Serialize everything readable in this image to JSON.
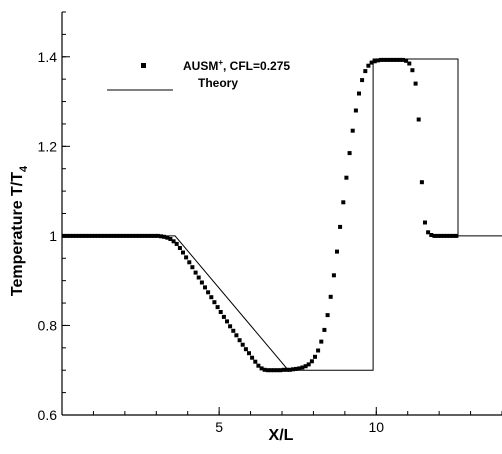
{
  "chart_data": {
    "type": "scatter",
    "xlabel": "X/L",
    "ylabel_main": "Temperature T/T",
    "ylabel_sub": "4",
    "xlim": [
      0,
      14
    ],
    "ylim": [
      0.6,
      1.5
    ],
    "x_ticks": [
      {
        "value": 5,
        "label": "5"
      },
      {
        "value": 10,
        "label": "10"
      }
    ],
    "x_minor_step": 1,
    "y_ticks": [
      {
        "value": 0.6,
        "label": "0.6"
      },
      {
        "value": 0.8,
        "label": "0.8"
      },
      {
        "value": 1.0,
        "label": "1"
      },
      {
        "value": 1.2,
        "label": "1.2"
      },
      {
        "value": 1.4,
        "label": "1.4"
      }
    ],
    "y_minor_step": 0.05,
    "grid": false,
    "legend_position": "top-left",
    "series": [
      {
        "name": "AUSM⁺, CFL=0.275",
        "name_main": "AUSM",
        "name_sup": "+",
        "name_rest": ", CFL=0.275",
        "style": "square-markers",
        "color": "#000000",
        "x_start": 0.05,
        "x_step": 0.1,
        "values": [
          1.0,
          1.0,
          1.0,
          1.0,
          1.0,
          1.0,
          1.0,
          1.0,
          1.0,
          1.0,
          1.0,
          1.0,
          1.0,
          1.0,
          1.0,
          1.0,
          1.0,
          1.0,
          1.0,
          1.0,
          1.0,
          1.0,
          1.0,
          1.0,
          1.0,
          1.0,
          1.0,
          1.0,
          1.0,
          1.0,
          1.0,
          0.999,
          0.998,
          0.996,
          0.993,
          0.988,
          0.982,
          0.973,
          0.963,
          0.952,
          0.941,
          0.93,
          0.918,
          0.907,
          0.896,
          0.885,
          0.874,
          0.863,
          0.852,
          0.841,
          0.83,
          0.819,
          0.809,
          0.798,
          0.788,
          0.778,
          0.767,
          0.757,
          0.747,
          0.738,
          0.728,
          0.719,
          0.71,
          0.704,
          0.701,
          0.7,
          0.7,
          0.7,
          0.7,
          0.7,
          0.701,
          0.701,
          0.701,
          0.702,
          0.703,
          0.704,
          0.706,
          0.709,
          0.713,
          0.72,
          0.73,
          0.744,
          0.764,
          0.79,
          0.823,
          0.864,
          0.912,
          0.965,
          1.02,
          1.075,
          1.13,
          1.185,
          1.235,
          1.28,
          1.318,
          1.348,
          1.368,
          1.38,
          1.387,
          1.39,
          1.392,
          1.393,
          1.393,
          1.393,
          1.393,
          1.393,
          1.393,
          1.393,
          1.393,
          1.391,
          1.385,
          1.37,
          1.34,
          1.26,
          1.12,
          1.03,
          1.008,
          1.002,
          1.0,
          1.0,
          1.0,
          1.0,
          1.0,
          1.0,
          1.0,
          1.0
        ]
      },
      {
        "name": "Theory",
        "style": "line",
        "color": "#000000",
        "points": [
          [
            0,
            1.0
          ],
          [
            3.6,
            1.0
          ],
          [
            7.2,
            0.7
          ],
          [
            9.9,
            0.7
          ],
          [
            9.9,
            1.395
          ],
          [
            12.6,
            1.395
          ],
          [
            12.6,
            1.0
          ],
          [
            14,
            1.0
          ]
        ]
      }
    ]
  }
}
